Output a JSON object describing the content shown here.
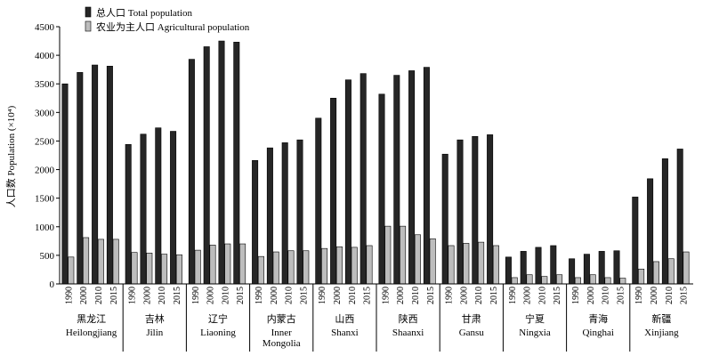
{
  "chart_data": {
    "type": "bar",
    "title": "",
    "xlabel": "",
    "ylabel": "人口数 Population (×10⁴)",
    "ylim": [
      0,
      4500
    ],
    "yticks": [
      0,
      500,
      1000,
      1500,
      2000,
      2500,
      3000,
      3500,
      4000,
      4500
    ],
    "grid": false,
    "legend_position": "top-left",
    "years": [
      "1990",
      "2000",
      "2010",
      "2015"
    ],
    "categories": [
      {
        "zh": "黑龙江",
        "en": [
          "Heilongjiang"
        ]
      },
      {
        "zh": "吉林",
        "en": [
          "Jilin"
        ]
      },
      {
        "zh": "辽宁",
        "en": [
          "Liaoning"
        ]
      },
      {
        "zh": "内蒙古",
        "en": [
          "Inner",
          "Mongolia"
        ]
      },
      {
        "zh": "山西",
        "en": [
          "Shanxi"
        ]
      },
      {
        "zh": "陕西",
        "en": [
          "Shaanxi"
        ]
      },
      {
        "zh": "甘肃",
        "en": [
          "Gansu"
        ]
      },
      {
        "zh": "宁夏",
        "en": [
          "Ningxia"
        ]
      },
      {
        "zh": "青海",
        "en": [
          "Qinghai"
        ]
      },
      {
        "zh": "新疆",
        "en": [
          "Xinjiang"
        ]
      }
    ],
    "series": [
      {
        "name": "总人口 Total population",
        "color": "#262626",
        "values": [
          [
            3500,
            3700,
            3830,
            3810
          ],
          [
            2440,
            2620,
            2730,
            2670
          ],
          [
            3930,
            4150,
            4250,
            4230
          ],
          [
            2160,
            2380,
            2470,
            2520
          ],
          [
            2900,
            3250,
            3570,
            3680
          ],
          [
            3320,
            3650,
            3730,
            3790
          ],
          [
            2270,
            2520,
            2580,
            2610
          ],
          [
            470,
            570,
            640,
            670
          ],
          [
            440,
            520,
            570,
            580
          ],
          [
            1520,
            1840,
            2190,
            2360
          ]
        ]
      },
      {
        "name": "农业为主人口 Agricultural population",
        "color": "#bdbdbd",
        "values": [
          [
            470,
            810,
            780,
            780
          ],
          [
            550,
            540,
            520,
            510
          ],
          [
            590,
            680,
            700,
            700
          ],
          [
            480,
            560,
            580,
            580
          ],
          [
            620,
            650,
            640,
            670
          ],
          [
            1010,
            1010,
            860,
            790
          ],
          [
            670,
            710,
            730,
            670
          ],
          [
            110,
            160,
            130,
            160
          ],
          [
            110,
            160,
            110,
            100
          ],
          [
            260,
            390,
            440,
            560
          ]
        ]
      }
    ]
  }
}
